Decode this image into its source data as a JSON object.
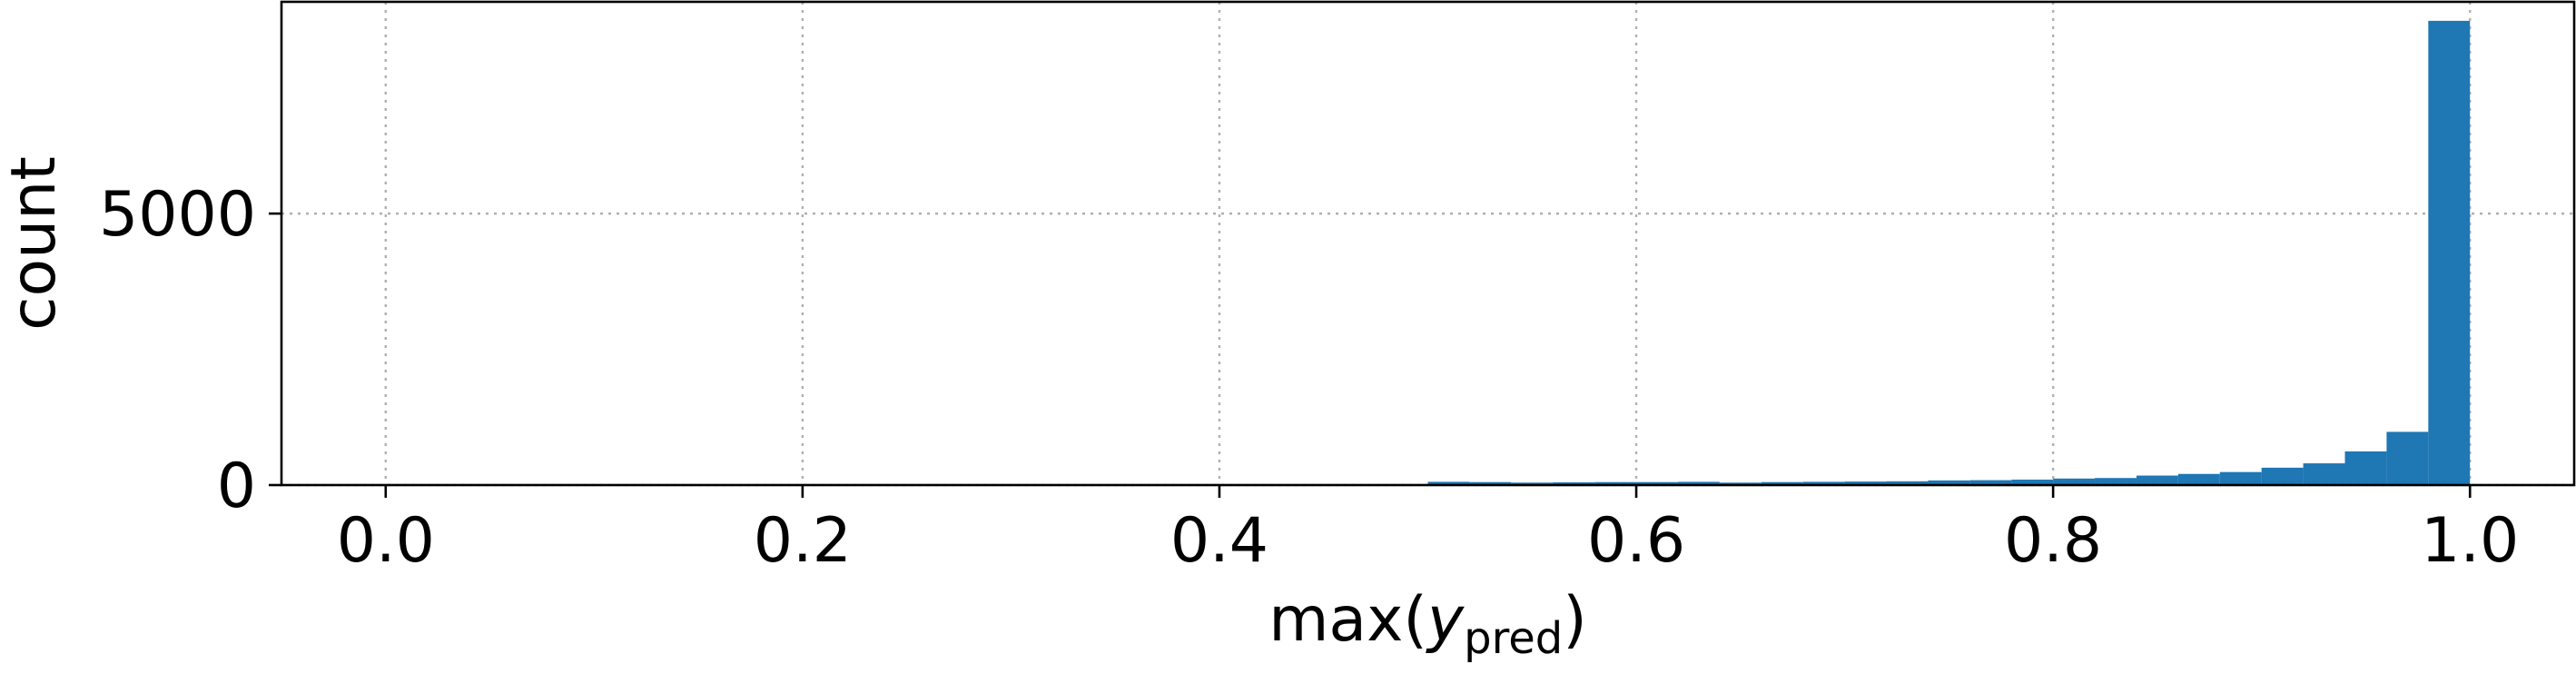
{
  "chart_data": {
    "type": "bar",
    "subtype": "histogram",
    "xlabel_main": "max(",
    "xlabel_var": "y",
    "xlabel_sub": "pred",
    "xlabel_close": ")",
    "ylabel": "count",
    "xlim": [
      -0.05,
      1.05
    ],
    "ylim": [
      0,
      8900
    ],
    "x_ticks": [
      0.0,
      0.2,
      0.4,
      0.6,
      0.8,
      1.0
    ],
    "x_tick_labels": [
      "0.0",
      "0.2",
      "0.4",
      "0.6",
      "0.8",
      "1.0"
    ],
    "y_ticks": [
      0,
      5000
    ],
    "y_tick_labels": [
      "0",
      "5000"
    ],
    "grid": true,
    "bar_color": "#1f77b4",
    "bin_width": 0.02,
    "bins": [
      {
        "x0": 0.5,
        "x1": 0.52,
        "count": 60
      },
      {
        "x0": 0.52,
        "x1": 0.54,
        "count": 55
      },
      {
        "x0": 0.54,
        "x1": 0.56,
        "count": 45
      },
      {
        "x0": 0.56,
        "x1": 0.58,
        "count": 50
      },
      {
        "x0": 0.58,
        "x1": 0.6,
        "count": 55
      },
      {
        "x0": 0.6,
        "x1": 0.62,
        "count": 55
      },
      {
        "x0": 0.62,
        "x1": 0.64,
        "count": 60
      },
      {
        "x0": 0.64,
        "x1": 0.66,
        "count": 45
      },
      {
        "x0": 0.66,
        "x1": 0.68,
        "count": 55
      },
      {
        "x0": 0.68,
        "x1": 0.7,
        "count": 60
      },
      {
        "x0": 0.7,
        "x1": 0.72,
        "count": 65
      },
      {
        "x0": 0.72,
        "x1": 0.74,
        "count": 70
      },
      {
        "x0": 0.74,
        "x1": 0.76,
        "count": 85
      },
      {
        "x0": 0.76,
        "x1": 0.78,
        "count": 90
      },
      {
        "x0": 0.78,
        "x1": 0.8,
        "count": 100
      },
      {
        "x0": 0.8,
        "x1": 0.82,
        "count": 120
      },
      {
        "x0": 0.82,
        "x1": 0.84,
        "count": 130
      },
      {
        "x0": 0.84,
        "x1": 0.86,
        "count": 175
      },
      {
        "x0": 0.86,
        "x1": 0.88,
        "count": 205
      },
      {
        "x0": 0.88,
        "x1": 0.9,
        "count": 240
      },
      {
        "x0": 0.9,
        "x1": 0.92,
        "count": 320
      },
      {
        "x0": 0.92,
        "x1": 0.94,
        "count": 400
      },
      {
        "x0": 0.94,
        "x1": 0.96,
        "count": 620
      },
      {
        "x0": 0.96,
        "x1": 0.98,
        "count": 980
      },
      {
        "x0": 0.98,
        "x1": 1.0,
        "count": 8550
      }
    ]
  }
}
